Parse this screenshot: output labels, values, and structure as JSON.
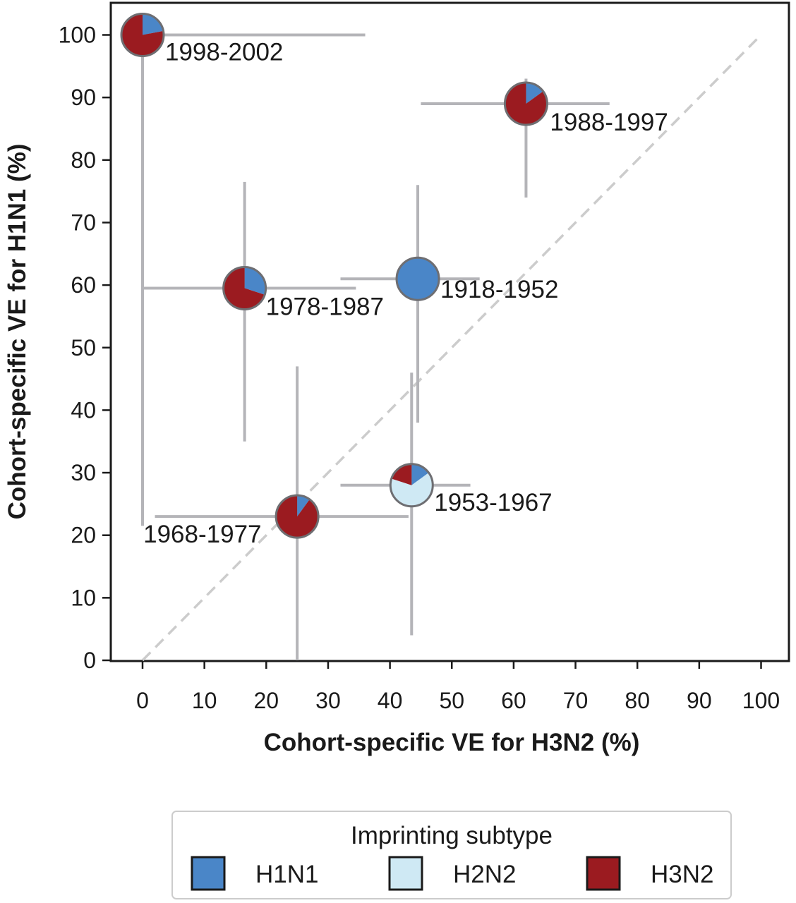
{
  "chart_data": {
    "type": "scatter",
    "marker": "pie",
    "title": "",
    "xlabel": "Cohort-specific VE for H3N2 (%)",
    "ylabel": "Cohort-specific VE for H1N1 (%)",
    "xlim": [
      -5,
      105
    ],
    "ylim": [
      -1.5,
      105
    ],
    "xticks": [
      0,
      10,
      20,
      30,
      40,
      50,
      60,
      70,
      80,
      90,
      100
    ],
    "yticks": [
      0,
      10,
      20,
      30,
      40,
      50,
      60,
      70,
      80,
      90,
      100
    ],
    "grid": false,
    "reference_line": {
      "from": [
        0,
        0
      ],
      "to": [
        100,
        100
      ],
      "style": "dashed",
      "color": "#cccccc"
    },
    "legend": {
      "title": "Imprinting subtype",
      "placement": "bottom",
      "entries": [
        {
          "label": "H1N1",
          "color": "#4a86c8"
        },
        {
          "label": "H2N2",
          "color": "#cfe9f4"
        },
        {
          "label": "H3N2",
          "color": "#9b1b20"
        }
      ]
    },
    "series": [
      {
        "label": "1918-1952",
        "x": 44.5,
        "y": 61,
        "x_ci": [
          32,
          54.5
        ],
        "y_ci": [
          38,
          76
        ],
        "shares": [
          1.0,
          0,
          0
        ]
      },
      {
        "label": "1953-1967",
        "x": 43.5,
        "y": 28,
        "x_ci": [
          32,
          53
        ],
        "y_ci": [
          4,
          46
        ],
        "shares": [
          0.15,
          0.65,
          0.2
        ]
      },
      {
        "label": "1968-1977",
        "x": 25,
        "y": 23,
        "x_ci": [
          2,
          43
        ],
        "y_ci": [
          0,
          47
        ],
        "shares": [
          0.1,
          0,
          0.9
        ]
      },
      {
        "label": "1978-1987",
        "x": 16.5,
        "y": 59.5,
        "x_ci": [
          0,
          34.5
        ],
        "y_ci": [
          35,
          76.5
        ],
        "shares": [
          0.3,
          0,
          0.7
        ]
      },
      {
        "label": "1988-1997",
        "x": 62,
        "y": 89,
        "x_ci": [
          45,
          75.5
        ],
        "y_ci": [
          74,
          93
        ],
        "shares": [
          0.15,
          0,
          0.85
        ]
      },
      {
        "label": "1998-2002",
        "x": 0,
        "y": 100,
        "x_ci": [
          0,
          36
        ],
        "y_ci": [
          21.5,
          100
        ],
        "shares": [
          0.22,
          0,
          0.78
        ]
      }
    ]
  }
}
